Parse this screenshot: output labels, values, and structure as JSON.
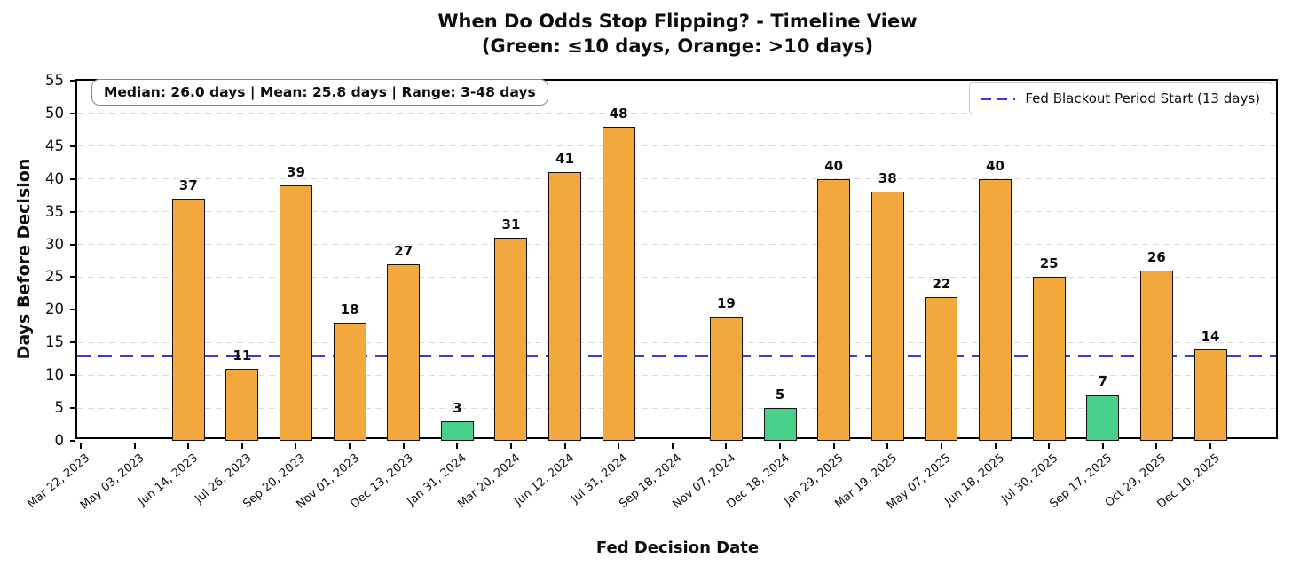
{
  "header": {
    "title": "When Do Odds Stop Flipping? - Timeline View",
    "subtitle": "(Green: ≤10 days, Orange: >10 days)"
  },
  "stats_box": {
    "text": "Median: 26.0 days | Mean: 25.8 days | Range: 3-48 days"
  },
  "legend": {
    "label": "Fed Blackout Period Start (13 days)"
  },
  "chart_data": {
    "type": "bar",
    "title": "When Do Odds Stop Flipping? - Timeline View (Green: ≤10 days, Orange: >10 days)",
    "xlabel": "Fed Decision Date",
    "ylabel": "Days Before Decision",
    "ylim": [
      0,
      55
    ],
    "ytick_step": 5,
    "grid": "horizontal-dashed",
    "legend_position": "upper-right",
    "bar_value_labels_shown": true,
    "threshold_line": {
      "value": 13,
      "label": "Fed Blackout Period Start (13 days)",
      "color": "#3a3ad9",
      "style": "dashed"
    },
    "categories": [
      "Mar 22, 2023",
      "May 03, 2023",
      "Jun 14, 2023",
      "Jul 26, 2023",
      "Sep 20, 2023",
      "Nov 01, 2023",
      "Dec 13, 2023",
      "Jan 31, 2024",
      "Mar 20, 2024",
      "Jun 12, 2024",
      "Jul 31, 2024",
      "Sep 18, 2024",
      "Nov 07, 2024",
      "Dec 18, 2024",
      "Jan 29, 2025",
      "Mar 19, 2025",
      "May 07, 2025",
      "Jun 18, 2025",
      "Jul 30, 2025",
      "Sep 17, 2025",
      "Oct 29, 2025",
      "Dec 10, 2025"
    ],
    "values": [
      0,
      0,
      37,
      11,
      39,
      18,
      27,
      3,
      31,
      41,
      48,
      0,
      19,
      5,
      40,
      38,
      22,
      40,
      25,
      7,
      26,
      14
    ],
    "color_rule": {
      "green_if_at_most_days": 10
    },
    "colors": {
      "green": "#48d08a",
      "orange": "#f2a83c",
      "bar_edge": "#111111",
      "threshold_blue": "#3a3ad9",
      "grid": "#dbdbdb"
    }
  }
}
